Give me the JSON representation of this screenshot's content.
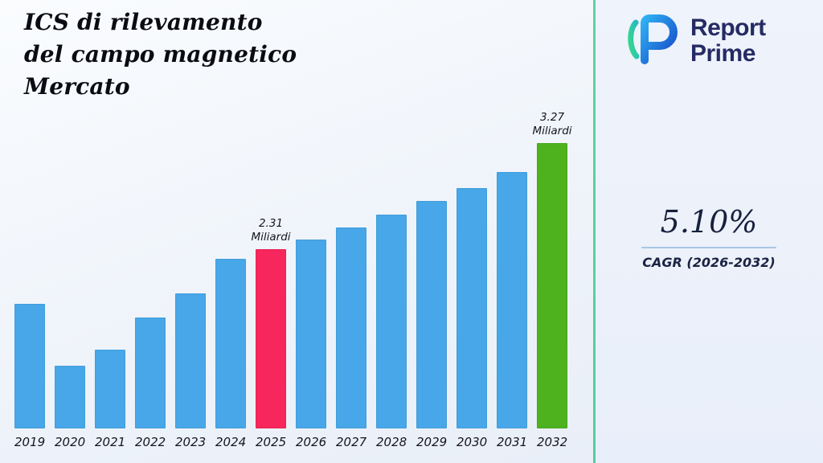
{
  "title": {
    "lines": [
      "ICS di rilevamento",
      "del campo magnetico",
      "Mercato"
    ]
  },
  "logo": {
    "line1": "Report",
    "line2": "Prime"
  },
  "stats": {
    "cagr_value": "5.10%",
    "cagr_label": "CAGR (2026-2032)"
  },
  "colors": {
    "divider_green": "#57cd97",
    "accent_navy": "#252b63",
    "underline_blue": "#a9c6e6"
  },
  "chart_data": {
    "type": "bar",
    "title": "ICS di rilevamento del campo magnetico Mercato",
    "xlabel": "",
    "ylabel": "Miliardi",
    "unit": "Miliardi",
    "categories": [
      "2019",
      "2020",
      "2021",
      "2022",
      "2023",
      "2024",
      "2025",
      "2026",
      "2027",
      "2028",
      "2029",
      "2030",
      "2031",
      "2032"
    ],
    "values": [
      1.82,
      1.26,
      1.4,
      1.69,
      1.91,
      2.22,
      2.31,
      2.4,
      2.51,
      2.62,
      2.75,
      2.86,
      3.01,
      3.27
    ],
    "labeled_points": [
      {
        "category": "2025",
        "label": "2.31 Miliardi",
        "lines": [
          "2.31",
          "Miliardi"
        ]
      },
      {
        "category": "2032",
        "label": "3.27 Miliardi",
        "lines": [
          "3.27",
          "Miliardi"
        ]
      }
    ],
    "ylim": [
      0.69,
      3.27
    ],
    "grid": false,
    "legend": "none",
    "colors": {
      "default": "#47a7e8"
    },
    "highlights": {
      "2025": "#f7265d",
      "2032": "#4eb11e"
    }
  }
}
